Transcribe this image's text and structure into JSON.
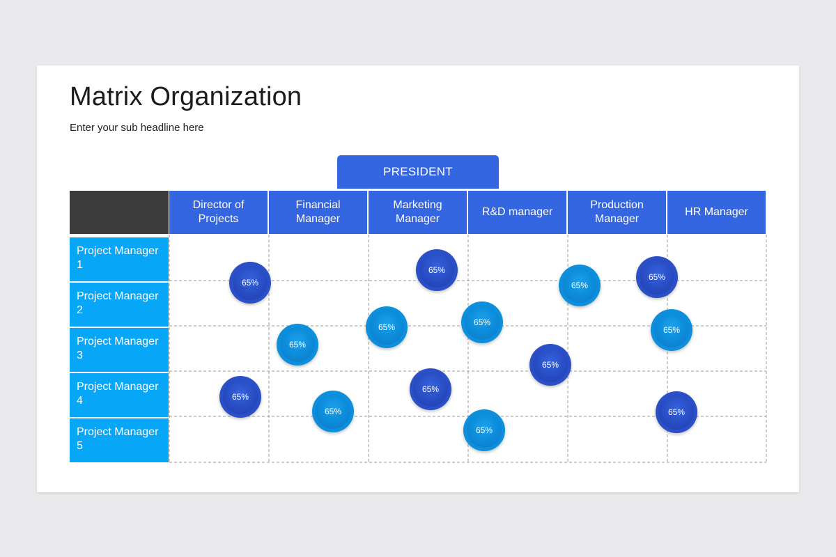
{
  "slide": {
    "title": "Matrix Organization",
    "subtitle": "Enter your sub headline here"
  },
  "president": {
    "label": "PRESIDENT"
  },
  "columns": [
    {
      "label": "Director of Projects"
    },
    {
      "label": "Financial Manager"
    },
    {
      "label": "Marketing Manager"
    },
    {
      "label": "R&D manager"
    },
    {
      "label": "Production Manager"
    },
    {
      "label": "HR Manager"
    }
  ],
  "rows": [
    {
      "label": "Project Manager 1"
    },
    {
      "label": "Project Manager 2"
    },
    {
      "label": "Project Manager 3"
    },
    {
      "label": "Project Manager 4"
    },
    {
      "label": "Project Manager 5"
    }
  ],
  "colors": {
    "header_blue": "#3466e2",
    "row_cyan": "#08a6f6",
    "corner_dark": "#3b3b3b",
    "bubble_dark": "#2a4fc7",
    "bubble_light": "#0e8fdc"
  },
  "bubbles": [
    {
      "label": "65%",
      "style": "dark"
    },
    {
      "label": "65%",
      "style": "dark"
    },
    {
      "label": "65%",
      "style": "light"
    },
    {
      "label": "65%",
      "style": "dark"
    },
    {
      "label": "65%",
      "style": "light"
    },
    {
      "label": "65%",
      "style": "light"
    },
    {
      "label": "65%",
      "style": "light"
    },
    {
      "label": "65%",
      "style": "light"
    },
    {
      "label": "65%",
      "style": "dark"
    },
    {
      "label": "65%",
      "style": "dark"
    },
    {
      "label": "65%",
      "style": "light"
    },
    {
      "label": "65%",
      "style": "dark"
    },
    {
      "label": "65%",
      "style": "light"
    },
    {
      "label": "65%",
      "style": "dark"
    },
    {
      "label": "65%",
      "style": "light"
    }
  ]
}
